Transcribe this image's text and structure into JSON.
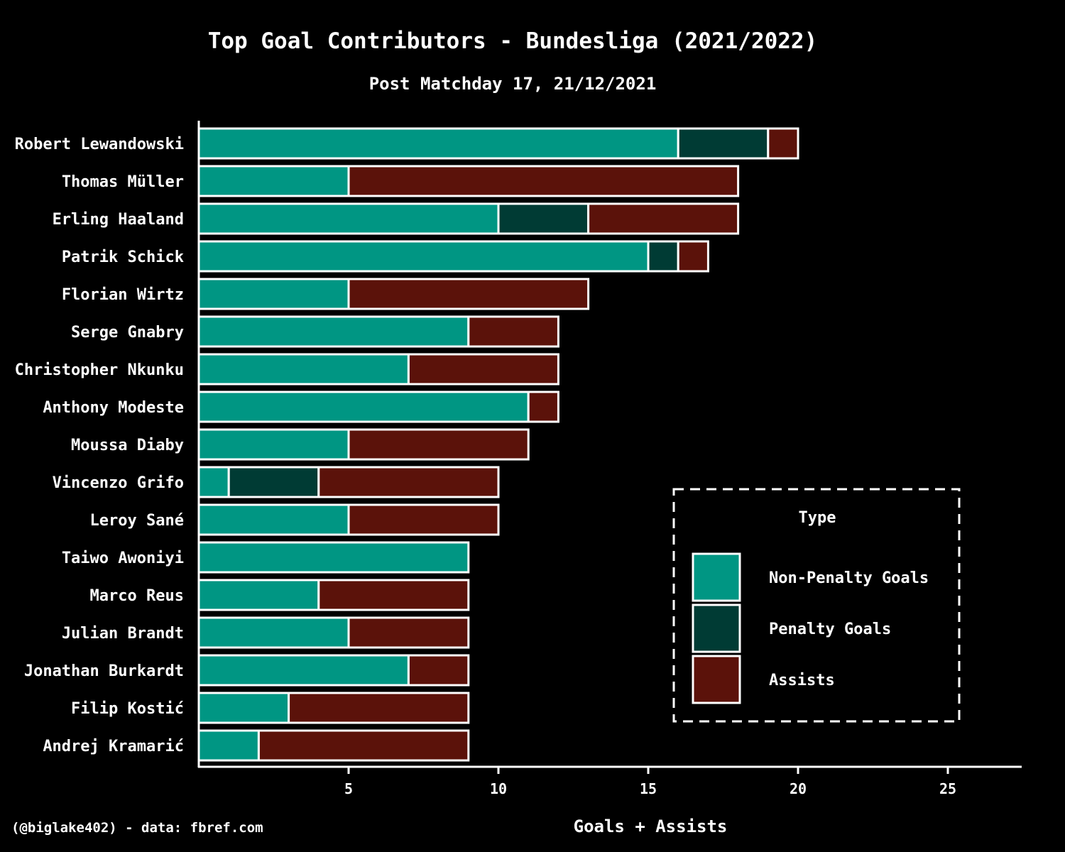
{
  "chart_data": {
    "type": "bar",
    "orientation": "horizontal",
    "stacked": true,
    "title": "Top Goal Contributors - Bundesliga (2021/2022)",
    "subtitle": "Post Matchday 17, 21/12/2021",
    "xlabel": "Goals + Assists",
    "ylabel": "",
    "xlim": [
      0,
      27.5
    ],
    "xticks": [
      5,
      10,
      15,
      20,
      25
    ],
    "grid": false,
    "legend_title": "Type",
    "legend_position": "right",
    "categories": [
      "Robert Lewandowski",
      "Thomas Müller",
      "Erling Haaland",
      "Patrik Schick",
      "Florian Wirtz",
      "Serge Gnabry",
      "Christopher Nkunku",
      "Anthony Modeste",
      "Moussa Diaby",
      "Vincenzo Grifo",
      "Leroy Sané",
      "Taiwo Awoniyi",
      "Marco Reus",
      "Julian Brandt",
      "Jonathan Burkardt",
      "Filip Kostić",
      "Andrej Kramarić"
    ],
    "series": [
      {
        "name": "Non-Penalty Goals",
        "color": "#009683",
        "values": [
          16,
          5,
          10,
          15,
          5,
          9,
          7,
          11,
          5,
          1,
          5,
          9,
          4,
          5,
          7,
          3,
          2
        ]
      },
      {
        "name": "Penalty Goals",
        "color": "#003b34",
        "values": [
          3,
          0,
          3,
          1,
          0,
          0,
          0,
          0,
          0,
          3,
          0,
          0,
          0,
          0,
          0,
          0,
          0
        ]
      },
      {
        "name": "Assists",
        "color": "#5b120a",
        "values": [
          1,
          13,
          5,
          1,
          8,
          3,
          5,
          1,
          6,
          6,
          5,
          0,
          5,
          4,
          2,
          6,
          7
        ]
      }
    ]
  },
  "footer": {
    "credit": "(@biglake402) - data: fbref.com"
  }
}
